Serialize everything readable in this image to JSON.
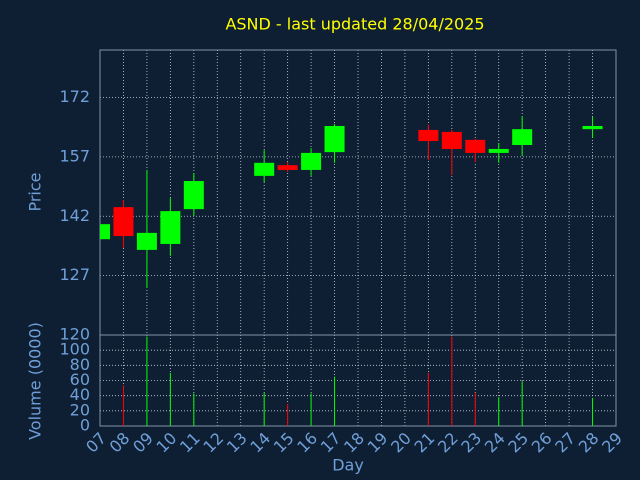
{
  "chart_data": {
    "type": "candlestick",
    "title": "ASND - last updated 28/04/2025",
    "xlabel": "Day",
    "ylabel": "Price",
    "volume_label": "Volume (0000)",
    "x": [
      7,
      8,
      9,
      10,
      11,
      14,
      15,
      16,
      17,
      21,
      22,
      23,
      24,
      25,
      28
    ],
    "open": [
      136.2,
      144.3,
      133.5,
      135.0,
      143.8,
      152.2,
      154.9,
      153.7,
      158.2,
      163.8,
      163.3,
      161.3,
      158.0,
      160.0,
      164.0
    ],
    "high": [
      140.0,
      146.1,
      153.7,
      146.6,
      152.9,
      158.7,
      155.7,
      159.2,
      165.3,
      165.1,
      163.8,
      161.5,
      160.5,
      167.3,
      167.1
    ],
    "low": [
      136.2,
      134.0,
      123.9,
      132.0,
      142.1,
      150.6,
      153.2,
      152.2,
      155.5,
      156.2,
      152.4,
      155.7,
      155.5,
      157.2,
      161.8
    ],
    "close": [
      140.0,
      137.0,
      137.8,
      143.3,
      150.9,
      155.5,
      153.7,
      158.0,
      164.8,
      161.0,
      159.0,
      158.0,
      159.0,
      164.0,
      164.8
    ],
    "volume": [
      null,
      53.5,
      118,
      70,
      43,
      44,
      29,
      43,
      65,
      70,
      118,
      44,
      38,
      59,
      37
    ],
    "up_color": "#00ff00",
    "down_color": "#ff0000",
    "title_color": "#ffff00",
    "xlim": [
      7,
      29
    ],
    "xticks": [
      {
        "value": 7,
        "label": "07"
      },
      {
        "value": 8,
        "label": "08"
      },
      {
        "value": 9,
        "label": "09"
      },
      {
        "value": 10,
        "label": "10"
      },
      {
        "value": 11,
        "label": "11"
      },
      {
        "value": 12,
        "label": "12"
      },
      {
        "value": 13,
        "label": "13"
      },
      {
        "value": 14,
        "label": "14"
      },
      {
        "value": 15,
        "label": "15"
      },
      {
        "value": 16,
        "label": "16"
      },
      {
        "value": 17,
        "label": "17"
      },
      {
        "value": 18,
        "label": "18"
      },
      {
        "value": 19,
        "label": "19"
      },
      {
        "value": 20,
        "label": "20"
      },
      {
        "value": 21,
        "label": "21"
      },
      {
        "value": 22,
        "label": "22"
      },
      {
        "value": 23,
        "label": "23"
      },
      {
        "value": 24,
        "label": "24"
      },
      {
        "value": 25,
        "label": "25"
      },
      {
        "value": 26,
        "label": "26"
      },
      {
        "value": 27,
        "label": "27"
      },
      {
        "value": 28,
        "label": "28"
      },
      {
        "value": 29,
        "label": "29"
      }
    ],
    "ylim": [
      112,
      184
    ],
    "yticks": [
      127,
      142,
      157,
      172
    ],
    "volume_ylim": [
      0,
      120
    ],
    "volume_yticks": [
      0,
      20,
      40,
      60,
      80,
      100,
      120
    ],
    "grid": true
  }
}
